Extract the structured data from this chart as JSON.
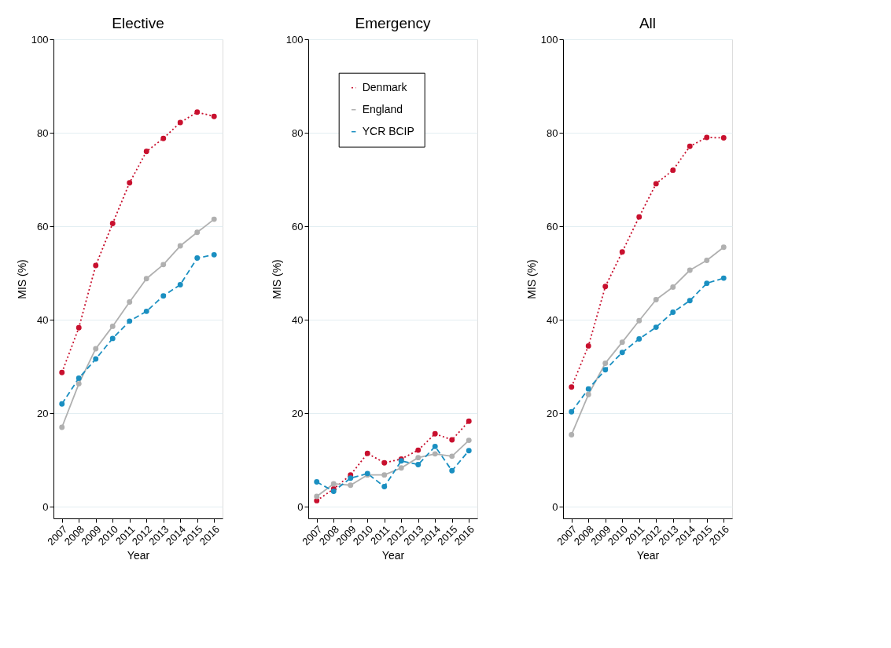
{
  "chart_data": [
    {
      "type": "line",
      "title": "Elective",
      "xlabel": "Year",
      "ylabel": "MIS (%)",
      "categories": [
        "2007",
        "2008",
        "2009",
        "2010",
        "2011",
        "2012",
        "2013",
        "2014",
        "2015",
        "2016"
      ],
      "ylim": [
        -2.5,
        100
      ],
      "yticks": [
        0,
        20,
        40,
        60,
        80,
        100
      ],
      "grid": "y",
      "legend": false,
      "marker": "circle",
      "series": [
        {
          "color": "#c8102e",
          "line_style": "dotted",
          "values": [
            28.7,
            38.3,
            51.6,
            60.6,
            69.3,
            76.0,
            78.8,
            82.2,
            84.4,
            83.5
          ]
        },
        {
          "color": "#b0b0b0",
          "line_style": "solid",
          "values": [
            17.0,
            26.3,
            33.8,
            38.6,
            43.8,
            48.8,
            51.8,
            55.8,
            58.7,
            61.5
          ]
        },
        {
          "color": "#1a8fc1",
          "line_style": "dashed",
          "values": [
            22.0,
            27.5,
            31.6,
            36.0,
            39.7,
            41.8,
            45.1,
            47.5,
            53.2,
            53.9
          ]
        }
      ]
    },
    {
      "type": "line",
      "title": "Emergency",
      "xlabel": "Year",
      "ylabel": "MIS (%)",
      "categories": [
        "2007",
        "2008",
        "2009",
        "2010",
        "2011",
        "2012",
        "2013",
        "2014",
        "2015",
        "2016"
      ],
      "ylim": [
        -2.5,
        100
      ],
      "yticks": [
        0,
        20,
        40,
        60,
        80,
        100
      ],
      "grid": "y",
      "legend": "top",
      "marker": "circle",
      "series": [
        {
          "name": "Denmark",
          "color": "#c8102e",
          "line_style": "dotted",
          "values": [
            1.3,
            3.8,
            6.8,
            11.4,
            9.4,
            10.2,
            12.1,
            15.6,
            14.3,
            18.3
          ]
        },
        {
          "name": "England",
          "color": "#b0b0b0",
          "line_style": "solid",
          "values": [
            2.2,
            4.9,
            4.6,
            6.8,
            6.8,
            8.3,
            10.5,
            11.3,
            10.8,
            14.2
          ]
        },
        {
          "name": "YCR BCIP",
          "color": "#1a8fc1",
          "line_style": "dashed",
          "values": [
            5.3,
            3.3,
            6.1,
            7.1,
            4.3,
            9.8,
            9.0,
            12.9,
            7.7,
            12.0
          ]
        }
      ]
    },
    {
      "type": "line",
      "title": "All",
      "xlabel": "Year",
      "ylabel": "MIS (%)",
      "categories": [
        "2007",
        "2008",
        "2009",
        "2010",
        "2011",
        "2012",
        "2013",
        "2014",
        "2015",
        "2016"
      ],
      "ylim": [
        -2.5,
        100
      ],
      "yticks": [
        0,
        20,
        40,
        60,
        80,
        100
      ],
      "grid": "y",
      "legend": false,
      "marker": "circle",
      "series": [
        {
          "color": "#c8102e",
          "line_style": "dotted",
          "values": [
            25.6,
            34.4,
            47.1,
            54.5,
            62.0,
            69.1,
            72.0,
            77.1,
            79.0,
            78.9
          ]
        },
        {
          "color": "#b0b0b0",
          "line_style": "solid",
          "values": [
            15.4,
            24.0,
            30.7,
            35.2,
            39.8,
            44.3,
            47.0,
            50.6,
            52.7,
            55.5
          ]
        },
        {
          "color": "#1a8fc1",
          "line_style": "dashed",
          "values": [
            20.3,
            25.2,
            29.3,
            33.0,
            35.9,
            38.4,
            41.6,
            44.1,
            47.8,
            48.9
          ]
        }
      ]
    }
  ]
}
